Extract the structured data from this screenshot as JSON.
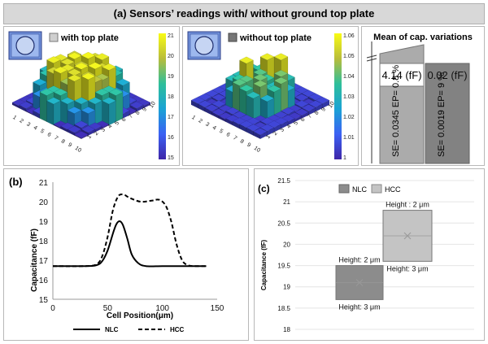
{
  "main_title": "(a) Sensors’ readings with/ without ground top plate",
  "panel_a1": {
    "legend": "with top plate",
    "colorbar_ticks": [
      "21",
      "20",
      "19",
      "18",
      "17",
      "16",
      "15"
    ],
    "colors": {
      "low": "#3b2aa8",
      "high": "#f9e33c"
    },
    "axis1_ticks": [
      "1",
      "2",
      "3",
      "4",
      "5",
      "6",
      "7",
      "8",
      "9",
      "10"
    ],
    "axis2_ticks": [
      "1",
      "2",
      "3",
      "4",
      "5",
      "6",
      "7",
      "8",
      "9",
      "10"
    ]
  },
  "panel_a2": {
    "legend": "without top plate",
    "colorbar_ticks": [
      "1.06",
      "1.05",
      "1.04",
      "1.03",
      "1.02",
      "1.01",
      "1"
    ],
    "axis1_ticks": [
      "1",
      "2",
      "3",
      "4",
      "5",
      "6",
      "7",
      "8",
      "9",
      "10"
    ],
    "axis2_ticks": [
      "1",
      "2",
      "3",
      "4",
      "5",
      "6",
      "7",
      "8",
      "9",
      "10"
    ]
  },
  "panel_a3": {
    "title": "Mean of cap. variations",
    "bars": [
      {
        "value_label": "4.14 (fF)",
        "stats": "SE= 0.0345  EP= 0.8 %",
        "color": "#a8a8a8"
      },
      {
        "value_label": "0.02 (fF)",
        "stats": "SE= 0.0019  EP= 9 %",
        "color": "#808080"
      }
    ]
  },
  "chart_data": [
    {
      "type": "line",
      "panel_label": "(b)",
      "title": "",
      "xlabel": "Cell Position(μm)",
      "ylabel": "Capacitance (fF)",
      "xlim": [
        0,
        150
      ],
      "ylim": [
        15,
        21
      ],
      "xticks": [
        "0",
        "50",
        "100",
        "150"
      ],
      "yticks": [
        "15",
        "16",
        "17",
        "18",
        "19",
        "20",
        "21"
      ],
      "series": [
        {
          "name": "NLC",
          "style": "solid",
          "x": [
            0,
            30,
            40,
            45,
            50,
            55,
            58,
            61,
            64,
            68,
            72,
            78,
            85,
            100,
            120,
            140
          ],
          "y": [
            16.7,
            16.7,
            16.75,
            16.95,
            17.5,
            18.4,
            18.85,
            19.0,
            18.8,
            18.1,
            17.3,
            16.85,
            16.7,
            16.7,
            16.7,
            16.7
          ]
        },
        {
          "name": "HCC",
          "style": "dashed",
          "x": [
            0,
            30,
            40,
            45,
            50,
            55,
            60,
            65,
            70,
            80,
            90,
            97,
            103,
            108,
            113,
            118,
            123,
            130,
            140
          ],
          "y": [
            16.7,
            16.7,
            16.8,
            17.2,
            18.2,
            19.6,
            20.3,
            20.35,
            20.2,
            20.0,
            20.05,
            20.1,
            19.8,
            19.0,
            17.8,
            17.0,
            16.75,
            16.7,
            16.7
          ]
        }
      ],
      "legend": [
        "NLC",
        "HCC"
      ]
    },
    {
      "type": "box",
      "panel_label": "(c)",
      "ylabel": "Capacitance (fF)",
      "ylim": [
        18,
        21.5
      ],
      "yticks": [
        "21.5",
        "21",
        "20.5",
        "20",
        "19.5",
        "19",
        "18.5",
        "18"
      ],
      "legend": [
        "NLC",
        "HCC"
      ],
      "boxes": [
        {
          "name": "NLC",
          "low": 18.7,
          "high": 19.5,
          "mean": 19.1,
          "color": "#8c8c8c",
          "top_label": "Height: 2 μm",
          "bottom_label": "Height: 3 μm"
        },
        {
          "name": "HCC",
          "low": 19.6,
          "high": 20.8,
          "mean": 20.2,
          "color": "#c4c4c4",
          "top_label": "Height : 2 μm",
          "bottom_label": "Height: 3 μm"
        }
      ]
    }
  ]
}
